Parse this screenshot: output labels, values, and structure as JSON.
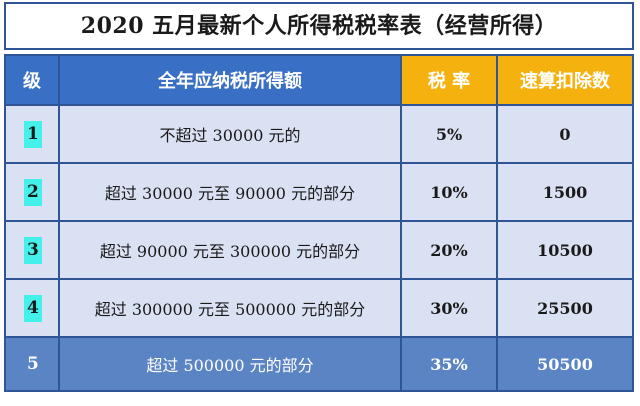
{
  "title": "2020 五月最新个人所得税税率表（经营所得）",
  "headers": {
    "level": "级",
    "income": "全年应纳税所得额",
    "rate": "税 率",
    "deduction": "速算扣除数"
  },
  "rows": [
    {
      "level": "1",
      "income": "不超过 30000 元的",
      "rate": "5%",
      "deduction": "0"
    },
    {
      "level": "2",
      "income": "超过 30000 元至 90000 元的部分",
      "rate": "10%",
      "deduction": "1500"
    },
    {
      "level": "3",
      "income": "超过 90000 元至 300000 元的部分",
      "rate": "20%",
      "deduction": "10500"
    },
    {
      "level": "4",
      "income": "超过 300000 元至 500000 元的部分",
      "rate": "30%",
      "deduction": "25500"
    },
    {
      "level": "5",
      "income": "超过 500000 元的部分",
      "rate": "35%",
      "deduction": "50500"
    }
  ],
  "colors": {
    "header_blue": "#3a6fc6",
    "header_gold": "#f5b20e",
    "row_fill": "#d9e1f2",
    "last_row_fill": "#5b84c4",
    "level_highlight": "#43f0ea",
    "border": "#2f5597"
  }
}
